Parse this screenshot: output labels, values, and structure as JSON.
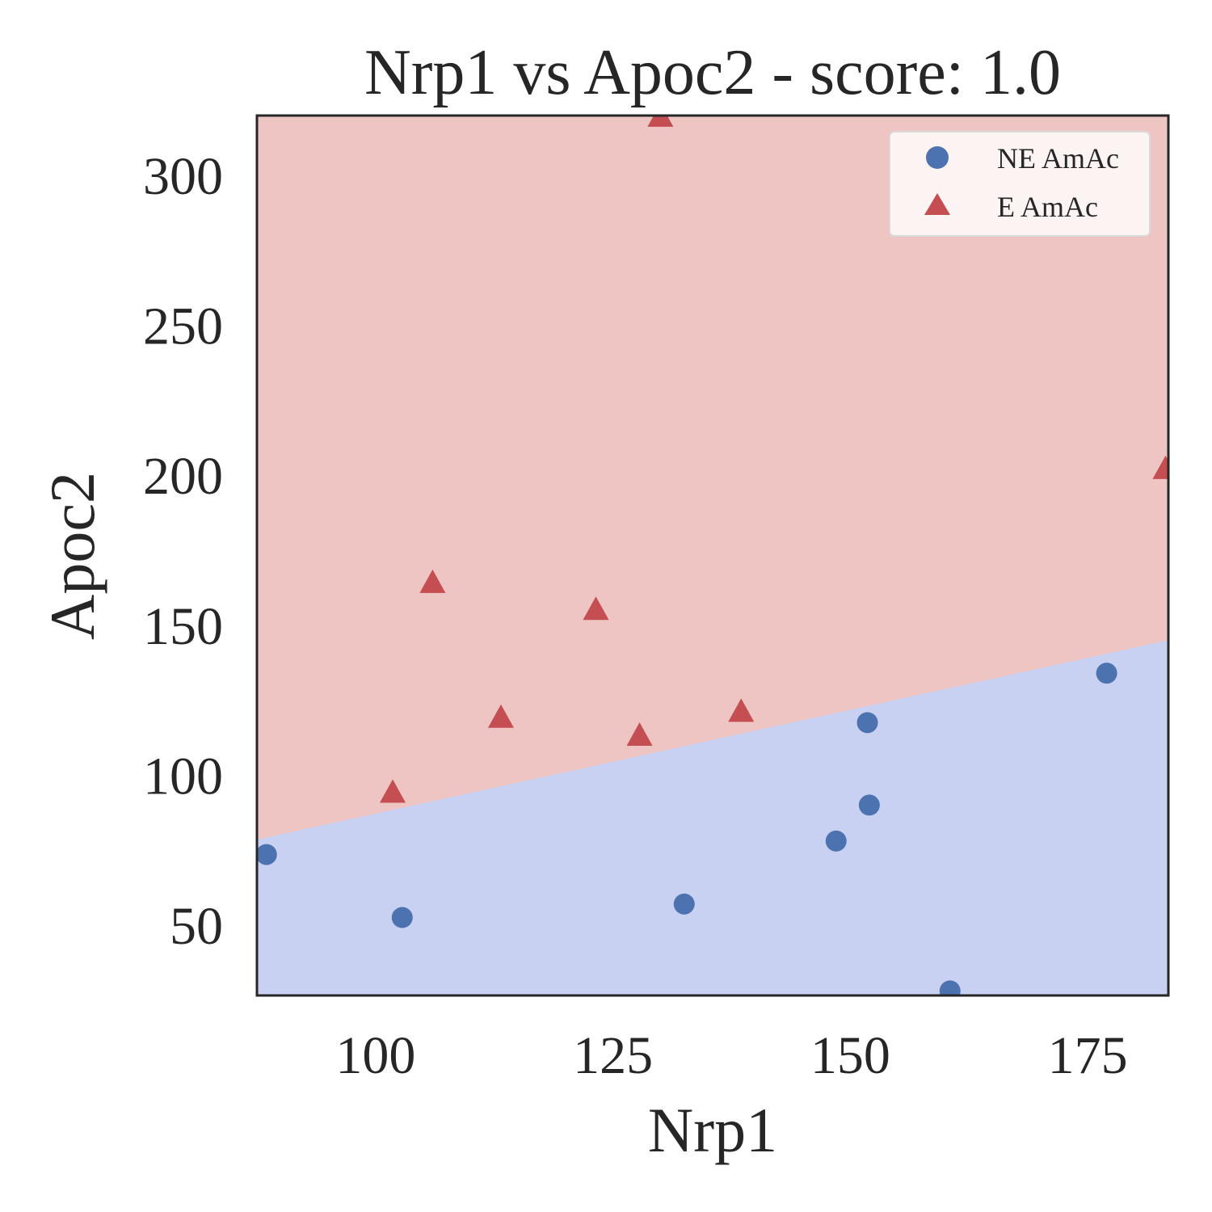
{
  "chart_data": {
    "type": "scatter",
    "title": "Nrp1 vs Apoc2 - score: 1.0",
    "xlabel": "Nrp1",
    "ylabel": "Apoc2",
    "xlim": [
      87.5,
      183.5
    ],
    "ylim": [
      26.5,
      320
    ],
    "xticks": [
      100,
      125,
      150,
      175
    ],
    "yticks": [
      50,
      100,
      150,
      200,
      250,
      300
    ],
    "grid": false,
    "legend_position": "top-right",
    "decision_boundary": {
      "x": [
        87.5,
        183.5
      ],
      "y": [
        78.5,
        145
      ],
      "above_color": "#eec5c3",
      "below_color": "#c9d1f2"
    },
    "series": [
      {
        "name": "NE AmAc",
        "marker": "circle",
        "color": "#4c72b0",
        "points": [
          {
            "x": 88.5,
            "y": 73.5
          },
          {
            "x": 102.8,
            "y": 52.5
          },
          {
            "x": 132.5,
            "y": 57
          },
          {
            "x": 148.5,
            "y": 78
          },
          {
            "x": 151.8,
            "y": 117.5
          },
          {
            "x": 152,
            "y": 90
          },
          {
            "x": 160.5,
            "y": 28
          },
          {
            "x": 177,
            "y": 134
          }
        ]
      },
      {
        "name": "E AmAc",
        "marker": "triangle",
        "color": "#c44e52",
        "points": [
          {
            "x": 101.8,
            "y": 94
          },
          {
            "x": 106,
            "y": 164
          },
          {
            "x": 113.2,
            "y": 119
          },
          {
            "x": 123.2,
            "y": 155
          },
          {
            "x": 127.8,
            "y": 113
          },
          {
            "x": 130,
            "y": 319.5
          },
          {
            "x": 138.5,
            "y": 121
          },
          {
            "x": 183.2,
            "y": 202
          }
        ]
      }
    ]
  }
}
